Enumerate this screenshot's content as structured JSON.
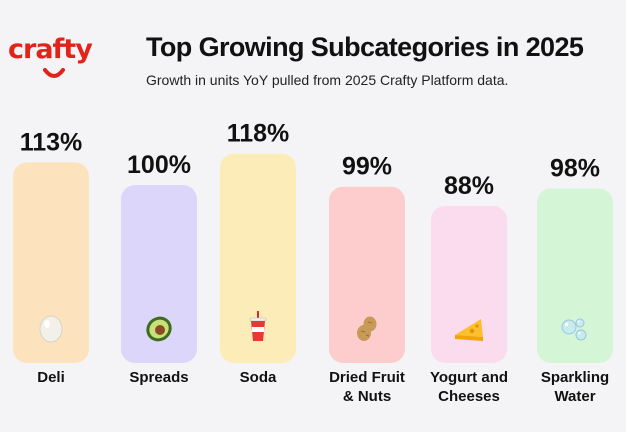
{
  "brand": {
    "logo_text": "crafty",
    "accent": "#e2231a"
  },
  "header": {
    "title": "Top Growing Subcategories in 2025",
    "subtitle": "Growth in units YoY pulled from 2025 Crafty Platform data."
  },
  "chart_data": {
    "type": "bar",
    "title": "Top Growing Subcategories in 2025",
    "subtitle": "Growth in units YoY pulled from 2025 Crafty Platform data.",
    "unit": "%",
    "categories": [
      "Deli",
      "Spreads",
      "Soda",
      "Dried Fruit & Nuts",
      "Yogurt and Cheeses",
      "Sparkling Water"
    ],
    "category_lines": [
      [
        "Deli"
      ],
      [
        "Spreads"
      ],
      [
        "Soda"
      ],
      [
        "Dried Fruit",
        "& Nuts"
      ],
      [
        "Yogurt and",
        "Cheeses"
      ],
      [
        "Sparkling",
        "Water"
      ]
    ],
    "values": [
      113,
      100,
      118,
      99,
      88,
      98
    ],
    "value_labels": [
      "113%",
      "100%",
      "118%",
      "99%",
      "88%",
      "98%"
    ],
    "colors": [
      "#fde3bd",
      "#ddd6fb",
      "#fcedb8",
      "#fdcccc",
      "#fbdcef",
      "#d4f5d6"
    ],
    "icons": [
      "egg-icon",
      "avocado-icon",
      "soda-cup-icon",
      "peanut-icon",
      "cheese-icon",
      "bubbles-icon"
    ],
    "xlabel": "",
    "ylabel": "",
    "ylim": [
      0,
      125
    ],
    "grid": false,
    "legend": "none"
  }
}
